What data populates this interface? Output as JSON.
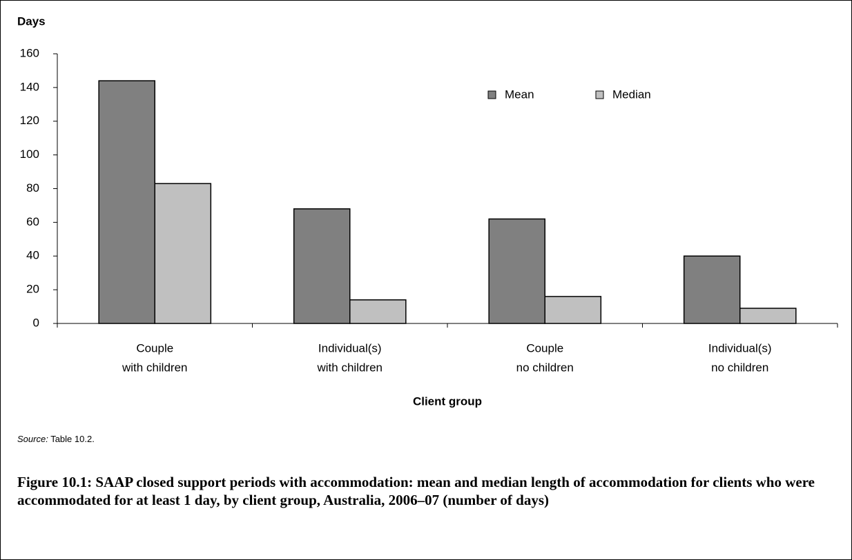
{
  "chart_data": {
    "type": "bar",
    "y_label": "Days",
    "x_label": "Client group",
    "categories": [
      [
        "Couple",
        "with children"
      ],
      [
        "Individual(s)",
        "with children"
      ],
      [
        "Couple",
        "no children"
      ],
      [
        "Individual(s)",
        "no children"
      ]
    ],
    "series": [
      {
        "name": "Mean",
        "color": "#808080",
        "values": [
          144,
          68,
          62,
          40
        ]
      },
      {
        "name": "Median",
        "color": "#c0c0c0",
        "values": [
          83,
          14,
          16,
          9
        ]
      }
    ],
    "ylim": [
      0,
      160
    ],
    "yticks": [
      0,
      20,
      40,
      60,
      80,
      100,
      120,
      140,
      160
    ],
    "legend": "top-right",
    "source": {
      "label": "Source:",
      "text": "Table 10.2."
    },
    "caption": "Figure 10.1: SAAP closed support periods with accommodation: mean and median length of accommodation for clients who were accommodated for at least 1 day, by client group, Australia, 2006–07 (number of days)"
  }
}
